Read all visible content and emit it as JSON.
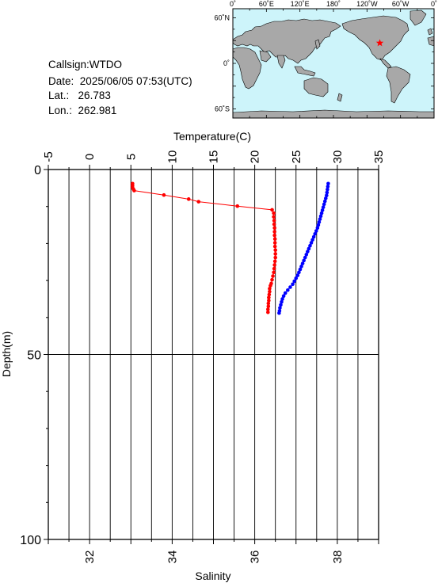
{
  "station": {
    "callsign_label": "Callsign:",
    "callsign": "WTDO",
    "date_label": "Date:",
    "date": "2025/06/05 07:53(UTC)",
    "lat_label": "Lat.:",
    "lat": "26.783",
    "lon_label": "Lon.:",
    "lon": "262.981"
  },
  "map": {
    "lon_ticks": [
      "0˚",
      "60˚E",
      "120˚E",
      "180˚",
      "120˚W",
      "60˚W",
      "0˚"
    ],
    "lat_ticks": [
      "60˚N",
      "0˚",
      "60˚S"
    ],
    "ocean_color": "#cdf4fa",
    "land_color": "#a8a8a8",
    "marker_color": "#ff0000",
    "marker_lon": 262.981,
    "marker_lat": 26.783
  },
  "chart_data": {
    "type": "scatter",
    "top_axis_label": "Temperature(C)",
    "bottom_axis_label": "Salinity",
    "left_axis_label": "Depth(m)",
    "temperature_ticks": [
      "-5",
      "0",
      "5",
      "10",
      "15",
      "20",
      "25",
      "30",
      "35"
    ],
    "salinity_ticks": [
      "32",
      "34",
      "36",
      "38"
    ],
    "depth_ticks": [
      "0",
      "50",
      "100"
    ],
    "temperature_range": [
      -5,
      35
    ],
    "salinity_range": [
      31,
      39
    ],
    "depth_range": [
      0,
      100
    ],
    "grid": true,
    "series": [
      {
        "color": "#ff0000",
        "variable": "temperature",
        "connect_first_points": 5,
        "points": [
          [
            5.2,
            3.8
          ],
          [
            5.2,
            4.3
          ],
          [
            5.2,
            4.8
          ],
          [
            5.3,
            5.3
          ],
          [
            5.4,
            5.7
          ],
          [
            9.0,
            6.9
          ],
          [
            12.0,
            8.0
          ],
          [
            13.2,
            8.7
          ],
          [
            17.9,
            9.9
          ],
          [
            22.1,
            10.9
          ],
          [
            22.3,
            11.8
          ],
          [
            22.3,
            12.8
          ],
          [
            22.35,
            13.8
          ],
          [
            22.35,
            14.8
          ],
          [
            22.4,
            15.8
          ],
          [
            22.4,
            16.8
          ],
          [
            22.4,
            17.8
          ],
          [
            22.45,
            18.8
          ],
          [
            22.45,
            19.8
          ],
          [
            22.45,
            20.8
          ],
          [
            22.5,
            21.8
          ],
          [
            22.5,
            22.8
          ],
          [
            22.5,
            23.8
          ],
          [
            22.45,
            24.8
          ],
          [
            22.4,
            25.8
          ],
          [
            22.35,
            26.8
          ],
          [
            22.3,
            27.8
          ],
          [
            22.2,
            28.8
          ],
          [
            22.1,
            29.8
          ],
          [
            22.0,
            30.8
          ],
          [
            21.9,
            31.4
          ],
          [
            21.8,
            32.2
          ],
          [
            21.8,
            33.0
          ],
          [
            21.75,
            33.8
          ],
          [
            21.7,
            34.6
          ],
          [
            21.7,
            35.4
          ],
          [
            21.65,
            36.2
          ],
          [
            21.65,
            37.0
          ],
          [
            21.6,
            37.8
          ],
          [
            21.6,
            38.6
          ]
        ]
      },
      {
        "color": "#0000ff",
        "variable": "salinity",
        "points": [
          [
            37.78,
            3.8
          ],
          [
            37.77,
            4.6
          ],
          [
            37.76,
            5.4
          ],
          [
            37.75,
            6.2
          ],
          [
            37.74,
            7.0
          ],
          [
            37.72,
            7.8
          ],
          [
            37.7,
            8.6
          ],
          [
            37.68,
            9.4
          ],
          [
            37.66,
            10.2
          ],
          [
            37.64,
            11.0
          ],
          [
            37.62,
            11.8
          ],
          [
            37.6,
            12.6
          ],
          [
            37.58,
            13.4
          ],
          [
            37.56,
            14.2
          ],
          [
            37.54,
            15.0
          ],
          [
            37.52,
            15.8
          ],
          [
            37.49,
            16.6
          ],
          [
            37.46,
            17.4
          ],
          [
            37.43,
            18.2
          ],
          [
            37.4,
            19.0
          ],
          [
            37.37,
            19.8
          ],
          [
            37.34,
            20.6
          ],
          [
            37.31,
            21.4
          ],
          [
            37.28,
            22.2
          ],
          [
            37.25,
            23.0
          ],
          [
            37.22,
            23.8
          ],
          [
            37.19,
            24.6
          ],
          [
            37.16,
            25.4
          ],
          [
            37.13,
            26.2
          ],
          [
            37.1,
            27.0
          ],
          [
            37.07,
            27.8
          ],
          [
            37.04,
            28.6
          ],
          [
            37.0,
            29.4
          ],
          [
            36.96,
            30.2
          ],
          [
            36.92,
            31.0
          ],
          [
            36.86,
            31.8
          ],
          [
            36.8,
            32.6
          ],
          [
            36.74,
            33.4
          ],
          [
            36.7,
            34.2
          ],
          [
            36.67,
            35.0
          ],
          [
            36.65,
            35.8
          ],
          [
            36.63,
            36.6
          ],
          [
            36.61,
            37.4
          ],
          [
            36.6,
            38.2
          ],
          [
            36.59,
            38.8
          ]
        ]
      }
    ]
  }
}
